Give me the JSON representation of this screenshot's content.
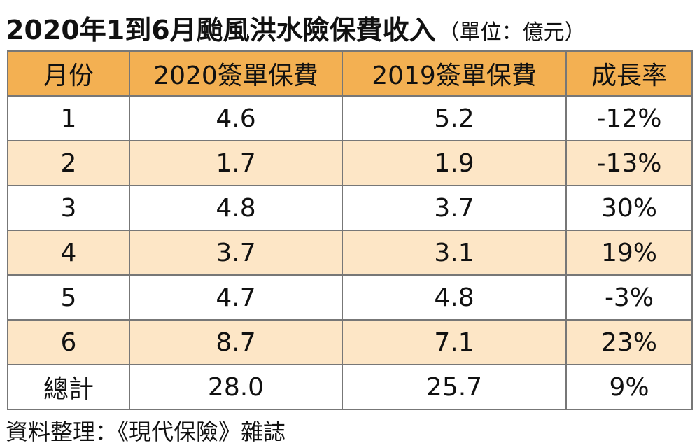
{
  "title": {
    "main": "2020年1到6月颱風洪水險保費收入",
    "unit": "（單位：億元）"
  },
  "chart_data": {
    "type": "table",
    "columns": [
      "月份",
      "2020簽單保費",
      "2019簽單保費",
      "成長率"
    ],
    "rows": [
      [
        "1",
        "4.6",
        "5.2",
        "-12%"
      ],
      [
        "2",
        "1.7",
        "1.9",
        "-13%"
      ],
      [
        "3",
        "4.8",
        "3.7",
        "30%"
      ],
      [
        "4",
        "3.7",
        "3.1",
        "19%"
      ],
      [
        "5",
        "4.7",
        "4.8",
        "-3%"
      ],
      [
        "6",
        "8.7",
        "7.1",
        "23%"
      ]
    ],
    "total": [
      "總計",
      "28.0",
      "25.7",
      "9%"
    ]
  },
  "colors": {
    "header_bg": "#f3b052",
    "stripe_bg": "#fde6c6",
    "border": "#777777"
  },
  "source": "資料整理：《現代保險》雜誌"
}
